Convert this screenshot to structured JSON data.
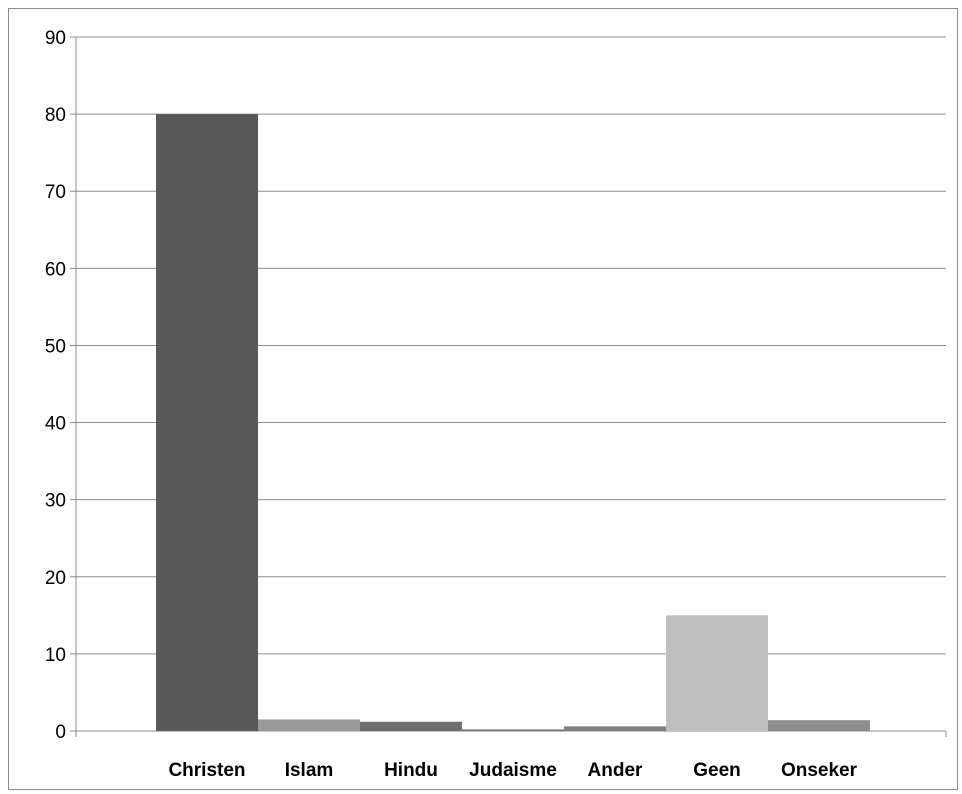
{
  "chart_data": {
    "type": "bar",
    "categories": [
      "Christen",
      "Islam",
      "Hindu",
      "Judaisme",
      "Ander",
      "Geen",
      "Onseker"
    ],
    "values": [
      80,
      1.5,
      1.2,
      0.2,
      0.6,
      15,
      1.4
    ],
    "colors": [
      "#585858",
      "#9a9a9a",
      "#6e6e6e",
      "#6e6e6e",
      "#7f7f7f",
      "#bfbfbf",
      "#8c8c8c"
    ],
    "ylim": [
      0,
      90
    ],
    "yticks": [
      0,
      10,
      20,
      30,
      40,
      50,
      60,
      70,
      80,
      90
    ],
    "grid": true,
    "title": "",
    "xlabel": "",
    "ylabel": ""
  }
}
